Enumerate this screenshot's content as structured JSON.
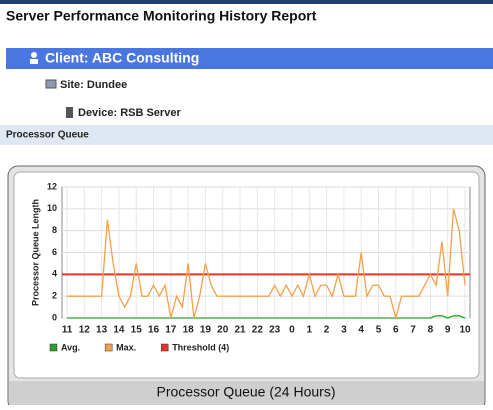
{
  "header": {
    "title": "Server Performance Monitoring History Report",
    "client": "Client: ABC Consulting",
    "site": "Site: Dundee",
    "device": "Device: RSB Server",
    "section": "Processor Queue"
  },
  "chart_data": {
    "type": "line",
    "title": "Processor Queue (24 Hours)",
    "ylabel": "Processor Queue Length",
    "categories": [
      "11",
      null,
      null,
      "12",
      null,
      null,
      "13",
      null,
      null,
      "14",
      null,
      null,
      "15",
      null,
      null,
      "16",
      null,
      null,
      "17",
      null,
      null,
      "18",
      null,
      null,
      "19",
      null,
      null,
      "20",
      null,
      null,
      "21",
      null,
      null,
      "22",
      null,
      null,
      "23",
      null,
      null,
      "0",
      null,
      null,
      "1",
      null,
      null,
      "2",
      null,
      null,
      "3",
      null,
      null,
      "4",
      null,
      null,
      "5",
      null,
      null,
      "6",
      null,
      null,
      "7",
      null,
      null,
      "8",
      null,
      null,
      "9",
      null,
      null,
      "10"
    ],
    "series": [
      {
        "name": "Avg.",
        "color": "#2ca02c",
        "values": [
          0,
          0,
          0,
          0,
          0,
          0,
          0,
          0,
          0,
          0,
          0,
          0,
          0,
          0,
          0,
          0,
          0,
          0,
          0,
          0,
          0,
          0,
          0,
          0,
          0,
          0,
          0,
          0,
          0,
          0,
          0,
          0,
          0,
          0,
          0,
          0,
          0,
          0,
          0,
          0,
          0,
          0,
          0,
          0,
          0,
          0,
          0,
          0,
          0,
          0,
          0,
          0,
          0,
          0,
          0,
          0,
          0,
          0,
          0,
          0,
          0,
          0,
          0,
          0,
          0.2,
          0.2,
          0,
          0.2,
          0.2,
          0
        ]
      },
      {
        "name": "Max.",
        "color": "#f5a04a",
        "values": [
          2,
          2,
          2,
          2,
          2,
          2,
          2,
          9,
          5,
          2,
          1,
          2,
          5,
          2,
          2,
          3,
          2,
          3,
          0,
          2,
          1,
          5,
          0,
          2,
          5,
          3,
          2,
          2,
          2,
          2,
          2,
          2,
          2,
          2,
          2,
          2,
          3,
          2,
          3,
          2,
          3,
          2,
          4,
          2,
          3,
          3,
          2,
          4,
          2,
          2,
          2,
          6,
          2,
          3,
          3,
          2,
          2,
          0,
          2,
          2,
          2,
          2,
          3,
          4,
          3,
          7,
          2,
          10,
          8,
          3
        ]
      }
    ],
    "threshold": {
      "name": "Threshold (4)",
      "color": "#e8312a",
      "value": 4
    },
    "ylim": [
      0,
      12
    ],
    "yticks": [
      0,
      2,
      4,
      6,
      8,
      10,
      12
    ],
    "grid": true
  }
}
